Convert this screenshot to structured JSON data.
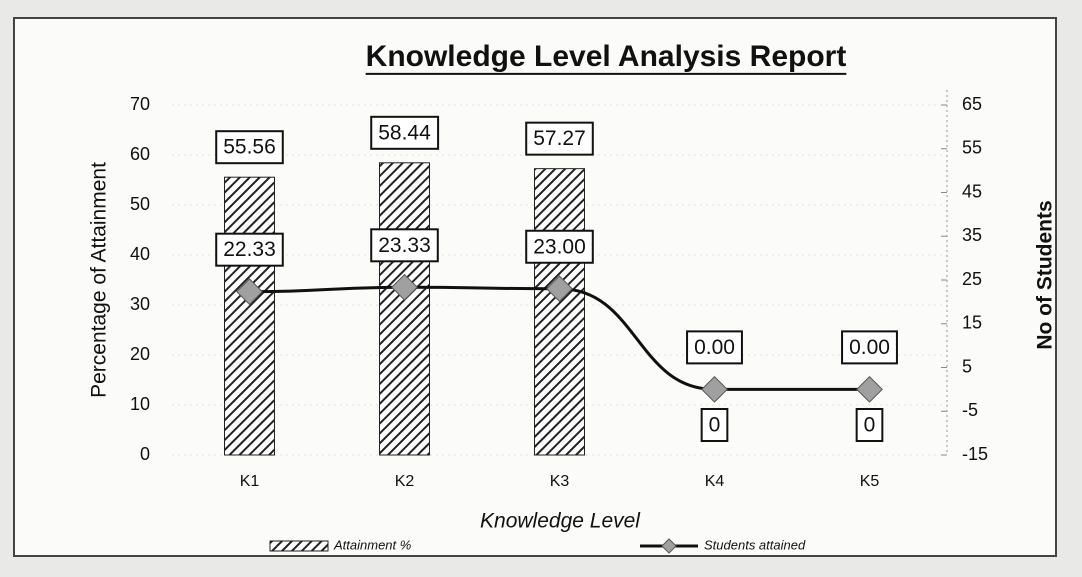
{
  "chart_data": {
    "type": "bar_line",
    "title": "Knowledge Level Analysis Report",
    "x_label": "Knowledge Level",
    "y_label": "Percentage of Attainment",
    "y2_label": "No of Students",
    "categories": [
      "K1",
      "K2",
      "K3",
      "K4",
      "K5"
    ],
    "series": [
      {
        "name": "Attainment %",
        "type": "bar",
        "color": "#222222",
        "values": [
          55.56,
          58.44,
          57.27,
          0,
          0
        ],
        "value_labels": [
          "55.56",
          "58.44",
          "57.27",
          "0",
          "0"
        ]
      },
      {
        "name": "Students attained",
        "type": "line",
        "axis": "y2",
        "color": "#111111",
        "marker_color": "#a0a0a0",
        "values": [
          22.33,
          23.33,
          23.0,
          0,
          0
        ],
        "value_labels": [
          "22.33",
          "23.33",
          "23.00",
          "0.00",
          "0.00"
        ]
      }
    ],
    "ylim": [
      0,
      70
    ],
    "yticks": [
      0,
      10,
      20,
      30,
      40,
      50,
      60,
      70
    ],
    "y2lim": [
      -15,
      65
    ],
    "y2ticks": [
      -15,
      -5,
      5,
      15,
      25,
      35,
      45,
      55,
      65
    ],
    "legend": "bottom"
  }
}
